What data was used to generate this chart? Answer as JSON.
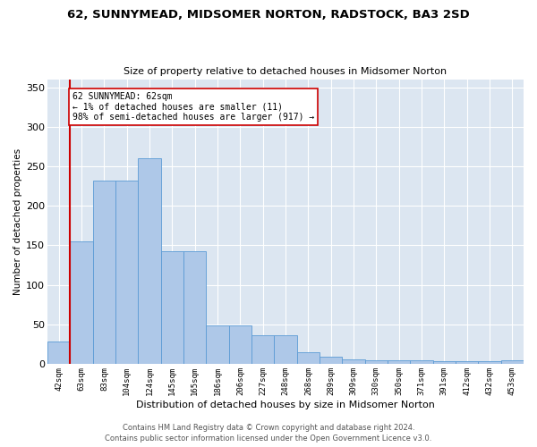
{
  "title": "62, SUNNYMEAD, MIDSOMER NORTON, RADSTOCK, BA3 2SD",
  "subtitle": "Size of property relative to detached houses in Midsomer Norton",
  "xlabel": "Distribution of detached houses by size in Midsomer Norton",
  "ylabel": "Number of detached properties",
  "footer_line1": "Contains HM Land Registry data © Crown copyright and database right 2024.",
  "footer_line2": "Contains public sector information licensed under the Open Government Licence v3.0.",
  "annotation_line1": "62 SUNNYMEAD: 62sqm",
  "annotation_line2": "← 1% of detached houses are smaller (11)",
  "annotation_line3": "98% of semi-detached houses are larger (917) →",
  "bar_heights": [
    28,
    155,
    232,
    232,
    260,
    143,
    143,
    49,
    49,
    36,
    36,
    15,
    9,
    6,
    5,
    5,
    5,
    3,
    3,
    3,
    5
  ],
  "x_labels": [
    "42sqm",
    "63sqm",
    "83sqm",
    "104sqm",
    "124sqm",
    "145sqm",
    "165sqm",
    "186sqm",
    "206sqm",
    "227sqm",
    "248sqm",
    "268sqm",
    "289sqm",
    "309sqm",
    "330sqm",
    "350sqm",
    "371sqm",
    "391sqm",
    "412sqm",
    "432sqm",
    "453sqm"
  ],
  "bar_color": "#aec8e8",
  "bar_edge_color": "#5b9bd5",
  "vline_color": "#cc0000",
  "annotation_box_color": "#cc0000",
  "plot_bg_color": "#dce6f1",
  "grid_color": "#ffffff",
  "fig_bg_color": "#ffffff",
  "ylim": [
    0,
    360
  ],
  "yticks": [
    0,
    50,
    100,
    150,
    200,
    250,
    300,
    350
  ],
  "title_fontsize": 9.5,
  "subtitle_fontsize": 8,
  "ylabel_fontsize": 7.5,
  "xlabel_fontsize": 8,
  "ytick_fontsize": 8,
  "xtick_fontsize": 6.5,
  "annotation_fontsize": 7,
  "footer_fontsize": 6
}
